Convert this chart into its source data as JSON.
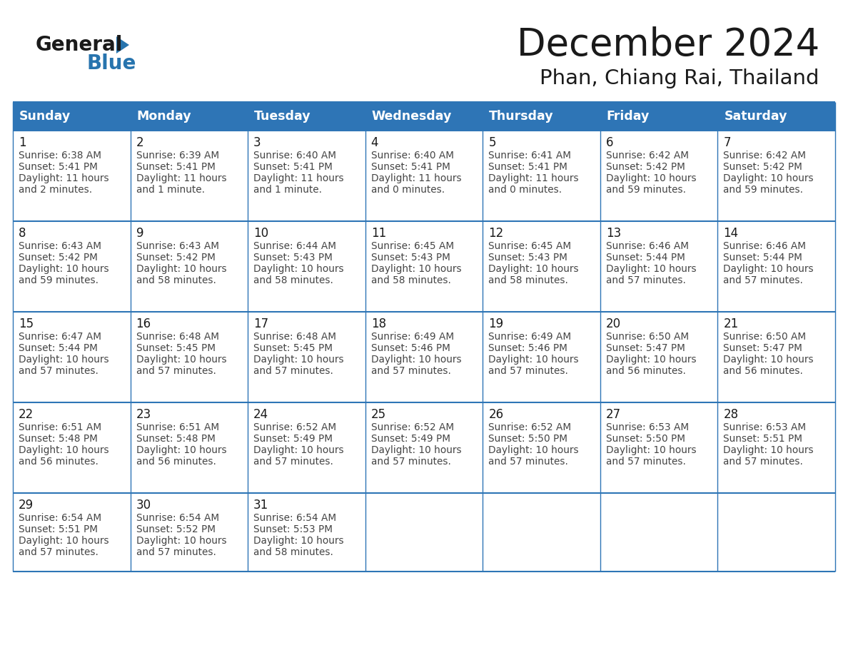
{
  "title": "December 2024",
  "subtitle": "Phan, Chiang Rai, Thailand",
  "header_bg": "#2E75B6",
  "header_text_color": "#FFFFFF",
  "days_of_week": [
    "Sunday",
    "Monday",
    "Tuesday",
    "Wednesday",
    "Thursday",
    "Friday",
    "Saturday"
  ],
  "border_color": "#2E75B6",
  "cell_text_color": "#333333",
  "logo_general_color": "#1A1A1A",
  "logo_blue_color": "#2774AE",
  "calendar_data": [
    [
      {
        "day": 1,
        "sunrise": "6:38 AM",
        "sunset": "5:41 PM",
        "daylight": "11 hours and 2 minutes."
      },
      {
        "day": 2,
        "sunrise": "6:39 AM",
        "sunset": "5:41 PM",
        "daylight": "11 hours and 1 minute."
      },
      {
        "day": 3,
        "sunrise": "6:40 AM",
        "sunset": "5:41 PM",
        "daylight": "11 hours and 1 minute."
      },
      {
        "day": 4,
        "sunrise": "6:40 AM",
        "sunset": "5:41 PM",
        "daylight": "11 hours and 0 minutes."
      },
      {
        "day": 5,
        "sunrise": "6:41 AM",
        "sunset": "5:41 PM",
        "daylight": "11 hours and 0 minutes."
      },
      {
        "day": 6,
        "sunrise": "6:42 AM",
        "sunset": "5:42 PM",
        "daylight": "10 hours and 59 minutes."
      },
      {
        "day": 7,
        "sunrise": "6:42 AM",
        "sunset": "5:42 PM",
        "daylight": "10 hours and 59 minutes."
      }
    ],
    [
      {
        "day": 8,
        "sunrise": "6:43 AM",
        "sunset": "5:42 PM",
        "daylight": "10 hours and 59 minutes."
      },
      {
        "day": 9,
        "sunrise": "6:43 AM",
        "sunset": "5:42 PM",
        "daylight": "10 hours and 58 minutes."
      },
      {
        "day": 10,
        "sunrise": "6:44 AM",
        "sunset": "5:43 PM",
        "daylight": "10 hours and 58 minutes."
      },
      {
        "day": 11,
        "sunrise": "6:45 AM",
        "sunset": "5:43 PM",
        "daylight": "10 hours and 58 minutes."
      },
      {
        "day": 12,
        "sunrise": "6:45 AM",
        "sunset": "5:43 PM",
        "daylight": "10 hours and 58 minutes."
      },
      {
        "day": 13,
        "sunrise": "6:46 AM",
        "sunset": "5:44 PM",
        "daylight": "10 hours and 57 minutes."
      },
      {
        "day": 14,
        "sunrise": "6:46 AM",
        "sunset": "5:44 PM",
        "daylight": "10 hours and 57 minutes."
      }
    ],
    [
      {
        "day": 15,
        "sunrise": "6:47 AM",
        "sunset": "5:44 PM",
        "daylight": "10 hours and 57 minutes."
      },
      {
        "day": 16,
        "sunrise": "6:48 AM",
        "sunset": "5:45 PM",
        "daylight": "10 hours and 57 minutes."
      },
      {
        "day": 17,
        "sunrise": "6:48 AM",
        "sunset": "5:45 PM",
        "daylight": "10 hours and 57 minutes."
      },
      {
        "day": 18,
        "sunrise": "6:49 AM",
        "sunset": "5:46 PM",
        "daylight": "10 hours and 57 minutes."
      },
      {
        "day": 19,
        "sunrise": "6:49 AM",
        "sunset": "5:46 PM",
        "daylight": "10 hours and 57 minutes."
      },
      {
        "day": 20,
        "sunrise": "6:50 AM",
        "sunset": "5:47 PM",
        "daylight": "10 hours and 56 minutes."
      },
      {
        "day": 21,
        "sunrise": "6:50 AM",
        "sunset": "5:47 PM",
        "daylight": "10 hours and 56 minutes."
      }
    ],
    [
      {
        "day": 22,
        "sunrise": "6:51 AM",
        "sunset": "5:48 PM",
        "daylight": "10 hours and 56 minutes."
      },
      {
        "day": 23,
        "sunrise": "6:51 AM",
        "sunset": "5:48 PM",
        "daylight": "10 hours and 56 minutes."
      },
      {
        "day": 24,
        "sunrise": "6:52 AM",
        "sunset": "5:49 PM",
        "daylight": "10 hours and 57 minutes."
      },
      {
        "day": 25,
        "sunrise": "6:52 AM",
        "sunset": "5:49 PM",
        "daylight": "10 hours and 57 minutes."
      },
      {
        "day": 26,
        "sunrise": "6:52 AM",
        "sunset": "5:50 PM",
        "daylight": "10 hours and 57 minutes."
      },
      {
        "day": 27,
        "sunrise": "6:53 AM",
        "sunset": "5:50 PM",
        "daylight": "10 hours and 57 minutes."
      },
      {
        "day": 28,
        "sunrise": "6:53 AM",
        "sunset": "5:51 PM",
        "daylight": "10 hours and 57 minutes."
      }
    ],
    [
      {
        "day": 29,
        "sunrise": "6:54 AM",
        "sunset": "5:51 PM",
        "daylight": "10 hours and 57 minutes."
      },
      {
        "day": 30,
        "sunrise": "6:54 AM",
        "sunset": "5:52 PM",
        "daylight": "10 hours and 57 minutes."
      },
      {
        "day": 31,
        "sunrise": "6:54 AM",
        "sunset": "5:53 PM",
        "daylight": "10 hours and 58 minutes."
      },
      null,
      null,
      null,
      null
    ]
  ]
}
